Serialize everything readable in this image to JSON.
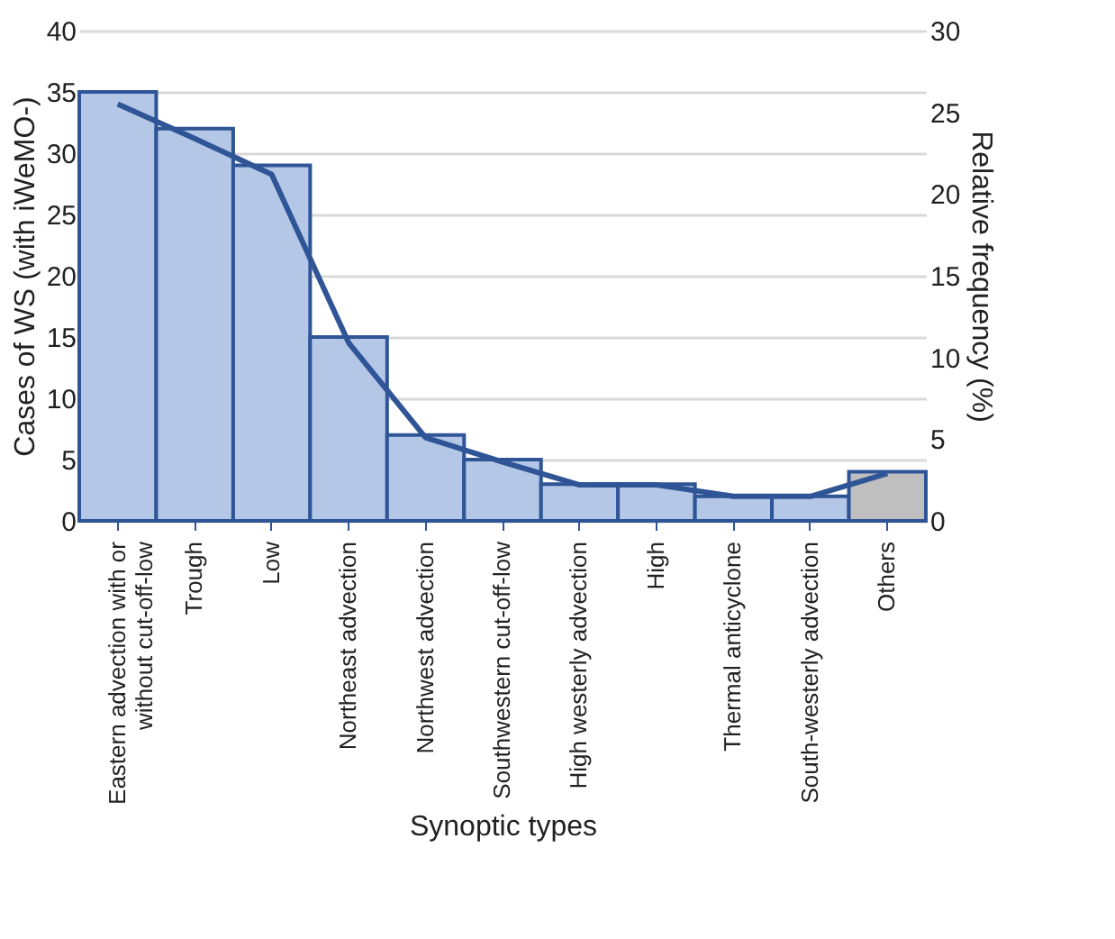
{
  "chart_data": {
    "type": "bar",
    "xlabel": "Synoptic types",
    "ylabel": "Cases of WS (with iWeMO-)",
    "y2label": "Relative frequency (%)",
    "categories": [
      "Eastern advection with or\nwithout cut-off-low",
      "Trough",
      "Low",
      "Northeast advection",
      "Northwest advection",
      "Southwestern cut-off-low",
      "High westerly advection",
      "High",
      "Thermal anticyclone",
      "South-westerly advection",
      "Others"
    ],
    "series": [
      {
        "axis": "y",
        "colors": [
          "#b4c7e7",
          "#b4c7e7",
          "#b4c7e7",
          "#b4c7e7",
          "#b4c7e7",
          "#b4c7e7",
          "#b4c7e7",
          "#b4c7e7",
          "#b4c7e7",
          "#b4c7e7",
          "#bfbfbf"
        ],
        "values": [
          35,
          32,
          29,
          15,
          7,
          5,
          3,
          3,
          2,
          2,
          4
        ]
      },
      {
        "type": "line",
        "axis": "y2",
        "color": "#2f5597",
        "values": [
          25.5,
          23.4,
          21.2,
          10.9,
          5.1,
          3.6,
          2.2,
          2.2,
          1.5,
          1.5,
          2.9
        ]
      }
    ],
    "ylim": [
      0,
      40
    ],
    "yticks": [
      0,
      5,
      10,
      15,
      20,
      25,
      30,
      35,
      40
    ],
    "y2lim": [
      0,
      30
    ],
    "y2ticks": [
      0,
      5,
      10,
      15,
      20,
      25,
      30
    ],
    "grid": "y"
  }
}
